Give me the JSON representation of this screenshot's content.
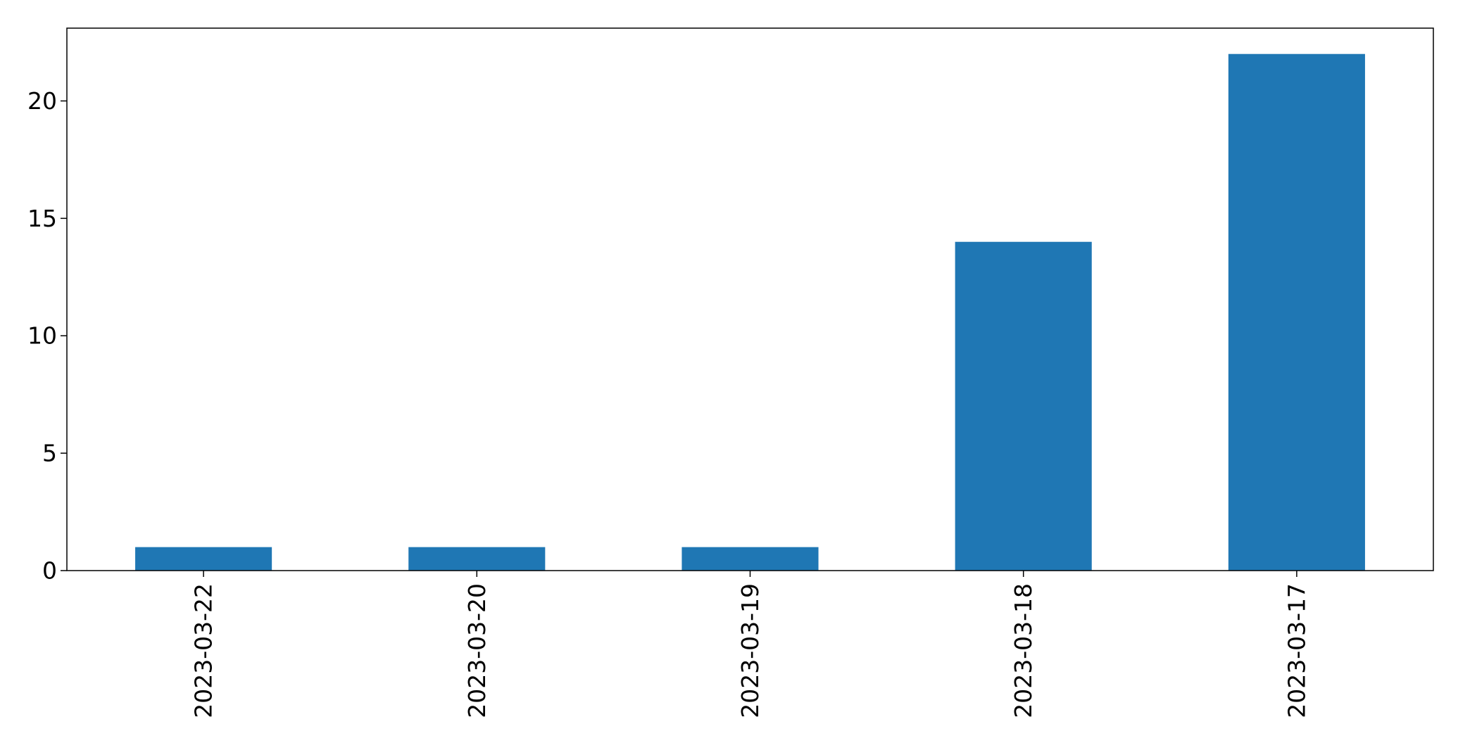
{
  "chart_data": {
    "type": "bar",
    "categories": [
      "2023-03-22",
      "2023-03-20",
      "2023-03-19",
      "2023-03-18",
      "2023-03-17"
    ],
    "values": [
      1,
      1,
      1,
      14,
      22
    ],
    "title": "",
    "xlabel": "",
    "ylabel": "",
    "ylim": [
      0,
      23.1
    ],
    "yticks": [
      0,
      5,
      10,
      15,
      20
    ],
    "grid": false,
    "legend": "none",
    "colors": {
      "bar": "#1f77b4",
      "axis": "#000000",
      "background": "#ffffff"
    }
  }
}
